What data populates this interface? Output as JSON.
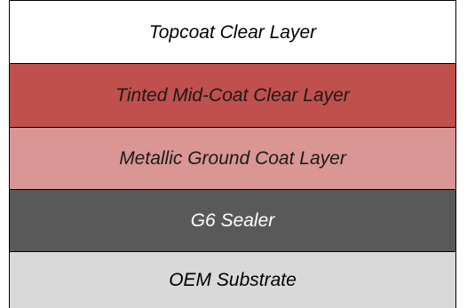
{
  "layers": [
    {
      "label": "Topcoat Clear Layer",
      "fill": "#ffffff",
      "text_color": "#000000"
    },
    {
      "label": "Tinted Mid-Coat Clear Layer",
      "fill": "#c0504d",
      "text_color": "#1a1a1a"
    },
    {
      "label": "Metallic Ground Coat Layer",
      "fill": "#d99694",
      "text_color": "#1a1a1a"
    },
    {
      "label": "G6 Sealer",
      "fill": "#595959",
      "text_color": "#ffffff"
    },
    {
      "label": "OEM Substrate",
      "fill": "#d9d9d9",
      "text_color": "#000000"
    }
  ],
  "colors": {
    "border": "#000000"
  }
}
